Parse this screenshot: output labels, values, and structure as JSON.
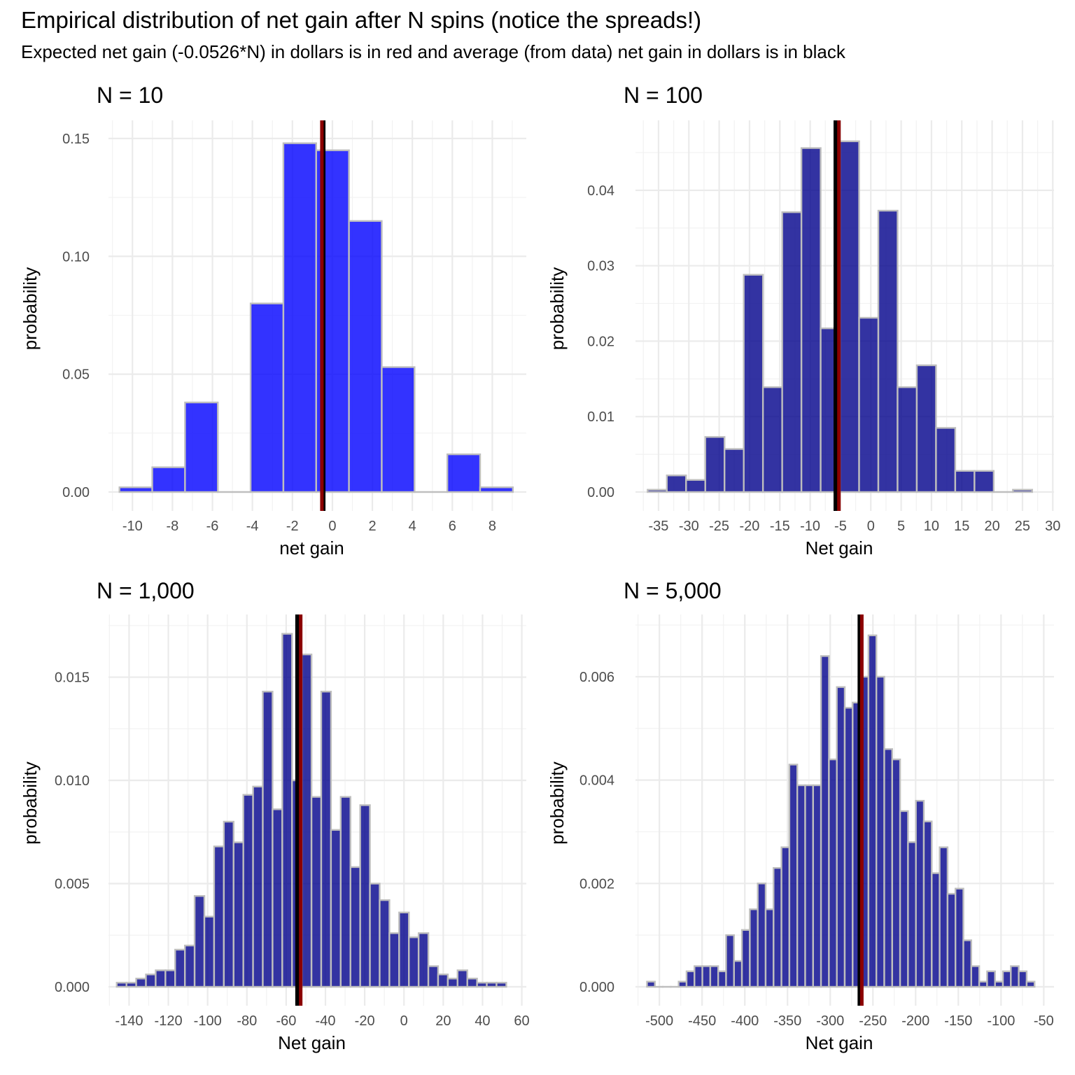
{
  "title": "Empirical distribution of net gain after N spins (notice the spreads!)",
  "subtitle": "Expected net gain (-0.0526*N) in dollars is in red and average (from data) net gain in dollars is in black",
  "colors": {
    "expected_line": "#8b0000",
    "average_line": "#000000",
    "bar_outline": "#bebebe",
    "bar_fill_n10": "#0000ff",
    "bar_fill_other": "#00008b"
  },
  "chart_data": [
    {
      "type": "bar",
      "panel_title": "N = 10",
      "xlabel": "net gain",
      "ylabel": "probability",
      "xlim": [
        -11.2,
        9.7
      ],
      "ylim": [
        0,
        0.1565
      ],
      "xticks": [
        -10,
        -8,
        -6,
        -4,
        -2,
        0,
        2,
        4,
        6,
        8
      ],
      "xtick_labels": [
        "-10",
        "-8",
        "-6",
        "-4",
        "-2",
        "0",
        "2",
        "4",
        "6",
        "8"
      ],
      "yticks": [
        0,
        0.05,
        0.1,
        0.15
      ],
      "ytick_labels": [
        "0.00",
        "0.05",
        "0.10",
        "0.15"
      ],
      "bin_start": -10.65,
      "bin_width": 1.64,
      "values": [
        0.002,
        0.0105,
        0.038,
        0.0,
        0.08,
        0.148,
        0.145,
        0.115,
        0.053,
        0.0,
        0.016,
        0.002
      ],
      "bar_fill": "#0000ff",
      "expected_mean": -0.526,
      "observed_mean": -0.45
    },
    {
      "type": "bar",
      "panel_title": "N = 100",
      "xlabel": "Net gain",
      "ylabel": "probability",
      "xlim": [
        -38.8,
        30.2
      ],
      "ylim": [
        0,
        0.0489
      ],
      "xticks": [
        -35,
        -30,
        -25,
        -20,
        -15,
        -10,
        -5,
        0,
        5,
        10,
        15,
        20,
        25,
        30
      ],
      "xtick_labels": [
        "-35",
        "-30",
        "-25",
        "-20",
        "-15",
        "-10",
        "-5",
        "0",
        "5",
        "10",
        "15",
        "20",
        "25",
        "30"
      ],
      "yticks": [
        0,
        0.01,
        0.02,
        0.03,
        0.04
      ],
      "ytick_labels": [
        "0.00",
        "0.01",
        "0.02",
        "0.03",
        "0.04"
      ],
      "bin_start": -36.8,
      "bin_width": 3.17,
      "values": [
        0.0003,
        0.0022,
        0.0016,
        0.0073,
        0.0057,
        0.0288,
        0.0139,
        0.0371,
        0.0456,
        0.0217,
        0.0465,
        0.0231,
        0.0373,
        0.0139,
        0.0168,
        0.0085,
        0.0028,
        0.0028,
        0.0,
        0.0003
      ],
      "bar_fill": "#00008b",
      "expected_mean": -5.26,
      "observed_mean": -5.8
    },
    {
      "type": "bar",
      "panel_title": "N = 1,000",
      "xlabel": "Net gain",
      "ylabel": "probability",
      "xlim": [
        -150.5,
        62.3
      ],
      "ylim": [
        0,
        0.0179
      ],
      "xticks": [
        -140,
        -120,
        -100,
        -80,
        -60,
        -40,
        -20,
        0,
        20,
        40,
        60
      ],
      "xtick_labels": [
        "-140",
        "-120",
        "-100",
        "-80",
        "-60",
        "-40",
        "-20",
        "0",
        "20",
        "40",
        "60"
      ],
      "yticks": [
        0,
        0.005,
        0.01,
        0.015
      ],
      "ytick_labels": [
        "0.000",
        "0.005",
        "0.010",
        "0.015"
      ],
      "bin_start": -146.3,
      "bin_width": 4.96,
      "values": [
        0.0002,
        0.0002,
        0.0004,
        0.0006,
        0.0008,
        0.0008,
        0.0018,
        0.002,
        0.0044,
        0.0034,
        0.0068,
        0.008,
        0.007,
        0.0093,
        0.0097,
        0.0143,
        0.0086,
        0.0171,
        0.01,
        0.0161,
        0.0092,
        0.0143,
        0.0076,
        0.0092,
        0.0058,
        0.0088,
        0.005,
        0.0042,
        0.0026,
        0.0036,
        0.0024,
        0.0026,
        0.001,
        0.0006,
        0.0004,
        0.0008,
        0.0004,
        0.0002,
        0.0002,
        0.0002
      ],
      "bar_fill": "#00008b",
      "expected_mean": -52.6,
      "observed_mean": -54.3
    },
    {
      "type": "bar",
      "panel_title": "N = 5,000",
      "xlabel": "Net gain",
      "ylabel": "probability",
      "xlim": [
        -528,
        -38
      ],
      "ylim": [
        0,
        0.00715
      ],
      "xticks": [
        -500,
        -450,
        -400,
        -350,
        -300,
        -250,
        -200,
        -150,
        -100,
        -50
      ],
      "xtick_labels": [
        "-500",
        "-450",
        "-400",
        "-350",
        "-300",
        "-250",
        "-200",
        "-150",
        "-100",
        "-50"
      ],
      "yticks": [
        0,
        0.002,
        0.004,
        0.006
      ],
      "ytick_labels": [
        "0.000",
        "0.002",
        "0.004",
        "0.006"
      ],
      "bin_start": -514.5,
      "bin_width": 9.26,
      "values": [
        0.0001,
        0.0,
        0.0,
        0.0,
        0.0001,
        0.0003,
        0.0004,
        0.0004,
        0.0004,
        0.0003,
        0.001,
        0.0005,
        0.0011,
        0.0015,
        0.002,
        0.0015,
        0.0023,
        0.0027,
        0.0043,
        0.0039,
        0.0039,
        0.0039,
        0.0064,
        0.0044,
        0.0058,
        0.0054,
        0.0055,
        0.006,
        0.0068,
        0.006,
        0.0046,
        0.0044,
        0.0034,
        0.0028,
        0.0036,
        0.0032,
        0.0022,
        0.0027,
        0.0018,
        0.0019,
        0.0009,
        0.0004,
        0.0001,
        0.0003,
        0.0001,
        0.0003,
        0.0004,
        0.0003,
        0.0001
      ],
      "bar_fill": "#00008b",
      "expected_mean": -263,
      "observed_mean": -265.5
    }
  ]
}
